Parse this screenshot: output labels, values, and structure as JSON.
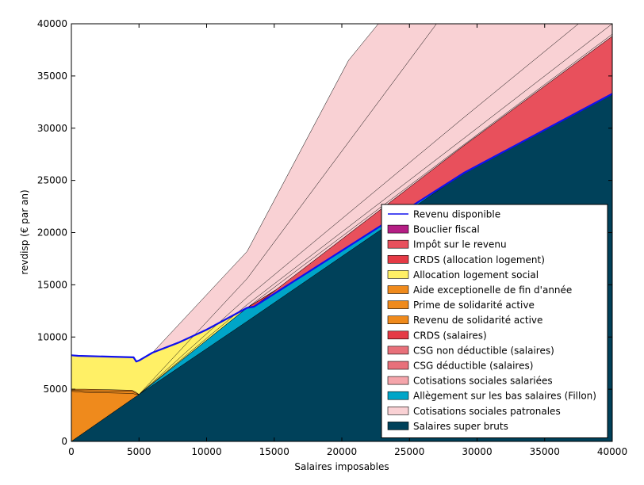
{
  "chart_data": {
    "type": "area",
    "title": "",
    "xlabel": "Salaires imposables",
    "ylabel": "revdisp (€ par an)",
    "xlim": [
      0,
      40000
    ],
    "ylim": [
      0,
      40000
    ],
    "x_ticks": [
      0,
      5000,
      10000,
      15000,
      20000,
      25000,
      30000,
      35000,
      40000
    ],
    "y_ticks": [
      0,
      5000,
      10000,
      15000,
      20000,
      25000,
      30000,
      35000,
      40000
    ],
    "grid": false,
    "legend_position": "lower-right",
    "stack_order_bottom_to_top": [
      "Salaires super bruts",
      "Allègement sur les bas salaires (Fillon)",
      "Cotisations sociales salariées",
      "CSG déductible (salaires)",
      "CSG non déductible (salaires)",
      "CRDS (salaires)",
      "Revenu de solidarité active",
      "Prime de solidarité active",
      "Aide exceptionelle de fin d'année",
      "Allocation logement social",
      "CRDS (allocation logement)",
      "Impôt sur le revenu",
      "Bouclier fiscal",
      "Cotisations sociales patronales"
    ],
    "series": [
      {
        "name": "Salaires super bruts",
        "color": "#00415a",
        "x": [
          0,
          5000,
          13000,
          29000,
          40000
        ],
        "y": [
          0,
          4500,
          11500,
          25700,
          33300
        ]
      },
      {
        "name": "Allègement sur les bas salaires (Fillon)",
        "color": "#00a5c8",
        "x": [
          0,
          5000,
          13000,
          13500,
          29000,
          40000
        ],
        "y": [
          0,
          4500,
          12800,
          12900,
          25700,
          33300
        ]
      },
      {
        "name": "Cotisations sociales salariées",
        "color": "#f5a5ab",
        "x": [
          0,
          5000,
          13000,
          29000,
          40000
        ],
        "y": [
          0,
          4500,
          12800,
          25700,
          33300
        ]
      },
      {
        "name": "CSG déductible (salaires)",
        "color": "#e8707a",
        "x": [
          0,
          5000,
          13000,
          29000,
          40000
        ],
        "y": [
          0,
          4500,
          12800,
          25700,
          33300
        ]
      },
      {
        "name": "CSG non déductible (salaires)",
        "color": "#e8707a",
        "x": [
          0,
          5000,
          13000,
          29000,
          40000
        ],
        "y": [
          0,
          4500,
          12800,
          25700,
          33300
        ]
      },
      {
        "name": "CRDS (salaires)",
        "color": "#e53a45",
        "x": [
          0,
          5000,
          13000,
          29000,
          40000
        ],
        "y": [
          0,
          4500,
          12800,
          25700,
          33300
        ]
      },
      {
        "name": "Revenu de solidarité active",
        "color": "#ef8a1c",
        "x": [
          0,
          1000,
          4500,
          4800,
          5000
        ],
        "y": [
          4800,
          4700,
          4600,
          4500,
          4500
        ]
      },
      {
        "name": "Prime de solidarité active",
        "color": "#ef8a1c",
        "x": [
          0,
          1000,
          4500,
          4800,
          5000
        ],
        "y": [
          4900,
          4850,
          4800,
          4600,
          4500
        ]
      },
      {
        "name": "Aide exceptionelle de fin d'année",
        "color": "#ef8a1c",
        "x": [
          0,
          1000,
          4500,
          4800,
          5000
        ],
        "y": [
          5000,
          5000,
          4900,
          4700,
          4500
        ]
      },
      {
        "name": "Allocation logement social",
        "color": "#fff066",
        "x": [
          0,
          500,
          4600,
          4800,
          5000,
          6000,
          8000,
          10000,
          13000,
          13500
        ],
        "y": [
          8250,
          8200,
          8050,
          7650,
          7750,
          8500,
          9500,
          10700,
          12800,
          12900
        ]
      },
      {
        "name": "CRDS (allocation logement)",
        "color": "#e53a45",
        "x": [
          0,
          500,
          4600,
          4800,
          5000,
          6000,
          8000,
          10000,
          13000,
          13500
        ],
        "y": [
          8250,
          8200,
          8050,
          7650,
          7750,
          8500,
          9500,
          10700,
          12800,
          12900
        ]
      },
      {
        "name": "Impôt sur le revenu",
        "color": "#e8505c",
        "x": [
          13500,
          29000,
          40000
        ],
        "y": [
          12900,
          28300,
          38800
        ]
      },
      {
        "name": "Bouclier fiscal",
        "color": "#b51e84",
        "x": [
          13500,
          29000,
          40000
        ],
        "y": [
          12900,
          28300,
          38800
        ]
      },
      {
        "name": "Cotisations sociales patronales",
        "color": "#f9d1d4",
        "x": [
          0,
          5000,
          6000,
          13000,
          20500,
          22700,
          40000
        ],
        "y": [
          0,
          4500,
          8500,
          18200,
          36500,
          40000,
          40000
        ]
      }
    ],
    "outlines": [
      {
        "name": "CRDS (salaires)",
        "x": [
          5000,
          13000,
          29000,
          40000
        ],
        "y": [
          4500,
          12800,
          28400,
          39000
        ]
      },
      {
        "name": "CSG non déductible (salaires)",
        "x": [
          5000,
          13000,
          29000,
          40000
        ],
        "y": [
          4500,
          13100,
          29000,
          40000
        ]
      },
      {
        "name": "CSG déductible (salaires)",
        "x": [
          5000,
          13000,
          29000,
          37500
        ],
        "y": [
          4500,
          13800,
          31000,
          40000
        ]
      },
      {
        "name": "Cotisations sociales salariées",
        "x": [
          5000,
          13000,
          27000
        ],
        "y": [
          4500,
          15600,
          40000
        ]
      }
    ],
    "line": {
      "name": "Revenu disponible",
      "color": "#1010ee",
      "x": [
        0,
        500,
        4600,
        4800,
        5000,
        6000,
        8000,
        10000,
        13000,
        13500,
        29000,
        40000
      ],
      "y": [
        8250,
        8200,
        8050,
        7650,
        7750,
        8500,
        9500,
        10700,
        12800,
        12900,
        25700,
        33300
      ]
    },
    "legend": [
      {
        "label": "Revenu disponible",
        "kind": "line",
        "color": "#1010ee"
      },
      {
        "label": "Bouclier fiscal",
        "kind": "patch",
        "color": "#b51e84"
      },
      {
        "label": "Impôt sur le revenu",
        "kind": "patch",
        "color": "#e8505c"
      },
      {
        "label": "CRDS (allocation logement)",
        "kind": "patch",
        "color": "#e53a45"
      },
      {
        "label": "Allocation logement social",
        "kind": "patch",
        "color": "#fff066"
      },
      {
        "label": "Aide exceptionelle de fin d'année",
        "kind": "patch",
        "color": "#ef8a1c"
      },
      {
        "label": "Prime de solidarité active",
        "kind": "patch",
        "color": "#ef8a1c"
      },
      {
        "label": "Revenu de solidarité active",
        "kind": "patch",
        "color": "#ef8a1c"
      },
      {
        "label": "CRDS (salaires)",
        "kind": "patch",
        "color": "#e53a45"
      },
      {
        "label": "CSG non déductible (salaires)",
        "kind": "patch",
        "color": "#e8707a"
      },
      {
        "label": "CSG déductible (salaires)",
        "kind": "patch",
        "color": "#e8707a"
      },
      {
        "label": "Cotisations sociales salariées",
        "kind": "patch",
        "color": "#f5a5ab"
      },
      {
        "label": "Allègement sur les bas salaires (Fillon)",
        "kind": "patch",
        "color": "#00a5c8"
      },
      {
        "label": "Cotisations sociales patronales",
        "kind": "patch",
        "color": "#f9d1d4"
      },
      {
        "label": "Salaires super bruts",
        "kind": "patch",
        "color": "#00415a"
      }
    ]
  }
}
